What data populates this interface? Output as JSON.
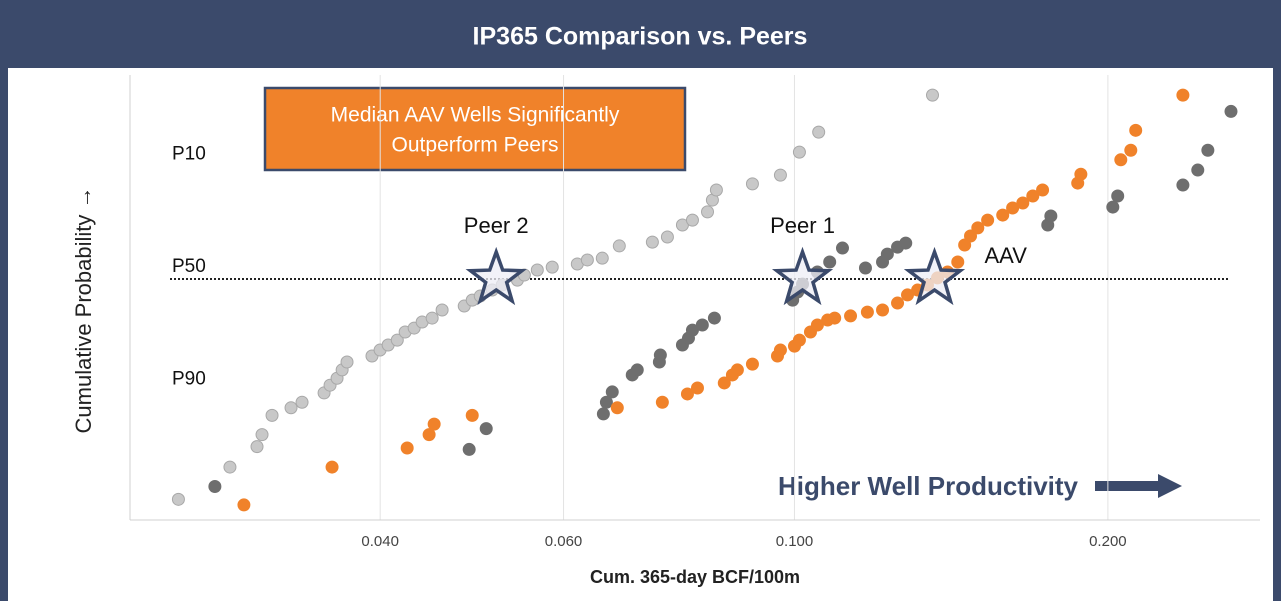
{
  "chart_data": {
    "type": "scatter",
    "title": "IP365 Comparison vs. Peers",
    "x_label": "Cum. 365-day BCF/100m",
    "y_label": "Cumulative Probability →",
    "callout": [
      "Median AAV Wells Significantly",
      "Outperform Peers"
    ],
    "annotation": "Higher Well Productivity",
    "xscale": "log",
    "yscale": "probability",
    "xlim": [
      0.023,
      0.28
    ],
    "ylim": [
      0.3,
      99
    ],
    "xticks": [
      {
        "value": 0.04,
        "label": "0.040"
      },
      {
        "value": 0.06,
        "label": "0.060"
      },
      {
        "value": 0.1,
        "label": "0.100"
      },
      {
        "value": 0.2,
        "label": "0.200"
      }
    ],
    "yticks": [
      {
        "value": 90,
        "label": "P10"
      },
      {
        "value": 50,
        "label": "P50"
      },
      {
        "value": 10,
        "label": "P90"
      }
    ],
    "reference_line": 50,
    "grid": true,
    "series": [
      {
        "name": "Peer 2",
        "color": "#c8c8c8",
        "x": [
          0.0256,
          0.02869,
          0.03046,
          0.0308,
          0.03149,
          0.03284,
          0.03365,
          0.03533,
          0.0358,
          0.03636,
          0.03677,
          0.03717,
          0.03928,
          0.03999,
          0.04071,
          0.04154,
          0.04227,
          0.04312,
          0.04389,
          0.04487,
          0.04587,
          0.04817,
          0.04903,
          0.04991,
          0.05125,
          0.05239,
          0.05418,
          0.05502,
          0.05662,
          0.05852,
          0.06186,
          0.06325,
          0.06537,
          0.06788,
          0.07303,
          0.0755,
          0.07805,
          0.0798,
          0.0825,
          0.0834,
          0.08414,
          0.09112,
          0.09694,
          0.1011,
          0.1055,
          0.1357
        ],
        "values": [
          0.6,
          1.6,
          2.8,
          3.8,
          6.0,
          7.1,
          8.0,
          9.7,
          11.3,
          12.9,
          15.0,
          17.2,
          19.0,
          20.9,
          22.6,
          24.3,
          27.3,
          28.8,
          31.2,
          32.8,
          36.2,
          37.9,
          40.5,
          42.3,
          45.0,
          47.3,
          49.5,
          51.8,
          54.1,
          55.4,
          56.8,
          58.6,
          59.4,
          64.7,
          66.3,
          68.4,
          73.1,
          74.9,
          77.8,
          81.6,
          84.5,
          86.1,
          88.2,
          92.6,
          95.3,
          98.2
        ]
      },
      {
        "name": "Peer 1",
        "color": "#6e6e6e",
        "x": [
          0.02775,
          0.0487,
          0.05057,
          0.06553,
          0.06597,
          0.06683,
          0.06985,
          0.07063,
          0.07417,
          0.07433,
          0.07805,
          0.0791,
          0.0798,
          0.08156,
          0.08377,
          0.0996,
          0.1007,
          0.1018,
          0.1052,
          0.1081,
          0.1112,
          0.117,
          0.1215,
          0.1228,
          0.1256,
          0.1279,
          0.1751,
          0.1763,
          0.2022,
          0.2044,
          0.2361,
          0.244,
          0.2495,
          0.2626
        ],
        "values": [
          0.9,
          2.6,
          4.4,
          6.2,
          8.0,
          9.9,
          13.7,
          15.0,
          17.2,
          19.3,
          22.6,
          25.0,
          28.0,
          30.0,
          32.8,
          40.5,
          44.1,
          47.7,
          53.2,
          57.7,
          63.8,
          55.0,
          57.7,
          61.2,
          64.2,
          65.9,
          73.1,
          76.4,
          79.4,
          82.8,
          85.8,
          89.3,
          92.9,
          97.2
        ]
      },
      {
        "name": "AAV",
        "color": "#f0822a",
        "x": [
          0.02959,
          0.03596,
          0.04246,
          0.04457,
          0.04507,
          0.04903,
          0.06758,
          0.07466,
          0.07892,
          0.08069,
          0.08562,
          0.08717,
          0.08814,
          0.09112,
          0.09631,
          0.09694,
          0.1,
          0.1011,
          0.1036,
          0.1052,
          0.1076,
          0.1093,
          0.1132,
          0.1175,
          0.1215,
          0.1256,
          0.1284,
          0.1313,
          0.1342,
          0.1372,
          0.1403,
          0.1435,
          0.1457,
          0.1476,
          0.15,
          0.1533,
          0.1585,
          0.162,
          0.1657,
          0.1694,
          0.1731,
          0.1871,
          0.1884,
          0.2058,
          0.2104,
          0.2127,
          0.2361
        ],
        "values": [
          0.5,
          1.6,
          2.7,
          3.8,
          4.9,
          6.0,
          7.1,
          8.0,
          9.5,
          10.7,
          11.8,
          13.7,
          15.0,
          16.6,
          19.0,
          20.9,
          22.2,
          24.3,
          27.3,
          30.0,
          32.0,
          32.8,
          33.7,
          35.3,
          36.2,
          39.2,
          42.8,
          45.0,
          47.3,
          50.5,
          53.2,
          57.7,
          65.1,
          68.8,
          72.0,
          74.9,
          76.7,
          79.1,
          80.7,
          82.8,
          84.5,
          86.3,
          88.4,
          91.3,
          92.9,
          95.5,
          98.2
        ]
      }
    ],
    "markers": [
      {
        "name": "Peer 2",
        "x": 0.0517,
        "y": 50
      },
      {
        "name": "Peer 1",
        "x": 0.1018,
        "y": 50
      },
      {
        "name": "AAV",
        "x": 0.1363,
        "y": 50
      }
    ]
  }
}
